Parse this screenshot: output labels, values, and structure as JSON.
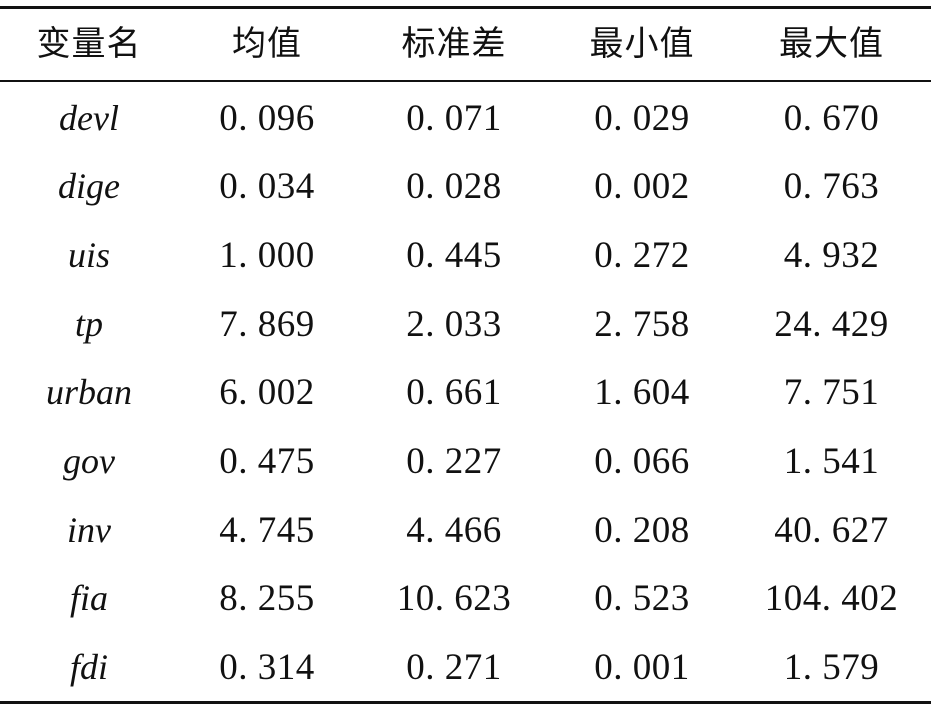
{
  "table": {
    "headers": [
      "变量名",
      "均值",
      "标准差",
      "最小值",
      "最大值"
    ],
    "rows": [
      {
        "var": "devl",
        "mean": "0. 096",
        "sd": "0. 071",
        "min": "0. 029",
        "max": "0. 670"
      },
      {
        "var": "dige",
        "mean": "0. 034",
        "sd": "0. 028",
        "min": "0. 002",
        "max": "0. 763"
      },
      {
        "var": "uis",
        "mean": "1. 000",
        "sd": "0. 445",
        "min": "0. 272",
        "max": "4. 932"
      },
      {
        "var": "tp",
        "mean": "7. 869",
        "sd": "2. 033",
        "min": "2. 758",
        "max": "24. 429"
      },
      {
        "var": "urban",
        "mean": "6. 002",
        "sd": "0. 661",
        "min": "1. 604",
        "max": "7. 751"
      },
      {
        "var": "gov",
        "mean": "0. 475",
        "sd": "0. 227",
        "min": "0. 066",
        "max": "1. 541"
      },
      {
        "var": "inv",
        "mean": "4. 745",
        "sd": "4. 466",
        "min": "0. 208",
        "max": "40. 627"
      },
      {
        "var": "fia",
        "mean": "8. 255",
        "sd": "10. 623",
        "min": "0. 523",
        "max": "104. 402"
      },
      {
        "var": "fdi",
        "mean": "0. 314",
        "sd": "0. 271",
        "min": "0. 001",
        "max": "1. 579"
      }
    ]
  }
}
